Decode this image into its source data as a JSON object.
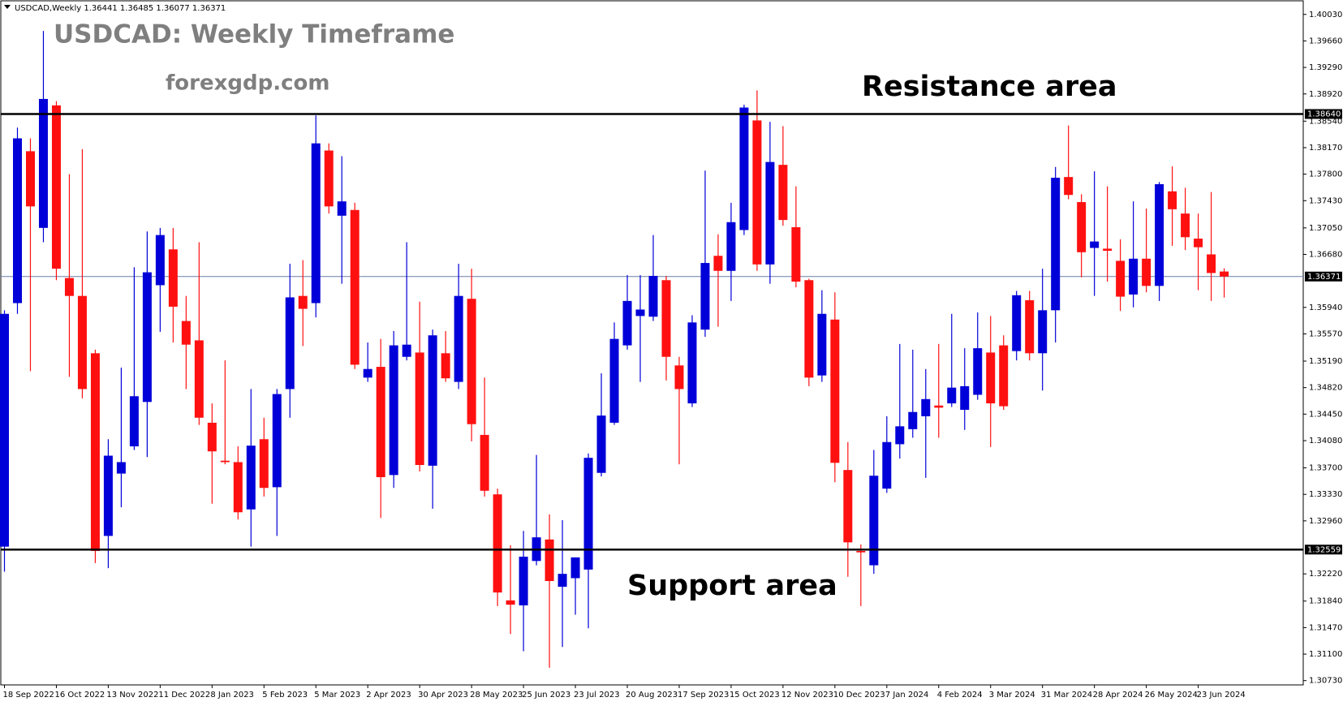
{
  "chart_data": {
    "type": "candlestick",
    "header": "USDCAD,Weekly  1.36441 1.36485 1.36077 1.36371",
    "title": "USDCAD: Weekly Timeframe",
    "subtitle": "forexgdp.com",
    "annotations": [
      {
        "text": "Resistance area"
      },
      {
        "text": "Support area"
      }
    ],
    "up_color": "#0000d8",
    "down_color": "#ff1010",
    "categories": [
      "18 Sep 2022",
      null,
      null,
      null,
      "16 Oct 2022",
      null,
      null,
      null,
      "13 Nov 2022",
      null,
      null,
      null,
      "11 Dec 2022",
      null,
      null,
      null,
      "8 Jan 2023",
      null,
      null,
      null,
      "5 Feb 2023",
      null,
      null,
      null,
      "5 Mar 2023",
      null,
      null,
      null,
      "2 Apr 2023",
      null,
      null,
      null,
      "30 Apr 2023",
      null,
      null,
      null,
      "28 May 2023",
      null,
      null,
      null,
      "25 Jun 2023",
      null,
      null,
      null,
      "23 Jul 2023",
      null,
      null,
      null,
      "20 Aug 2023",
      null,
      null,
      null,
      "17 Sep 2023",
      null,
      null,
      null,
      "15 Oct 2023",
      null,
      null,
      null,
      "12 Nov 2023",
      null,
      null,
      null,
      "10 Dec 2023",
      null,
      null,
      null,
      "7 Jan 2024",
      null,
      null,
      null,
      "4 Feb 2024",
      null,
      null,
      null,
      "3 Mar 2024",
      null,
      null,
      null,
      "31 Mar 2024",
      null,
      null,
      null,
      "28 Apr 2024",
      null,
      null,
      null,
      "26 May 2024",
      null,
      null,
      null,
      "23 Jun 2024",
      null,
      null
    ],
    "open": [
      1.326,
      1.36,
      1.3812,
      1.3705,
      1.3876,
      1.3635,
      1.361,
      1.353,
      1.3275,
      1.3362,
      1.34,
      1.3462,
      1.3625,
      1.3675,
      1.3575,
      1.3548,
      1.3433,
      1.338,
      1.3378,
      1.3312,
      1.341,
      1.3343,
      1.348,
      1.361,
      1.36,
      1.3813,
      1.3722,
      1.373,
      1.3496,
      1.3511,
      1.336,
      1.3525,
      1.3531,
      1.3373,
      1.353,
      1.349,
      1.3606,
      1.3416,
      1.3333,
      1.3185,
      1.3178,
      1.324,
      1.327,
      1.3204,
      1.3216,
      1.3228,
      1.3363,
      1.3433,
      1.3541,
      1.3582,
      1.3581,
      1.3632,
      1.3513,
      1.346,
      1.3563,
      1.3666,
      1.3645,
      1.3702,
      1.3855,
      1.3654,
      1.3793,
      1.3706,
      1.3632,
      1.3499,
      1.3577,
      1.3367,
      1.3254,
      1.3234,
      1.3341,
      1.3403,
      1.3424,
      1.3442,
      1.3457,
      1.346,
      1.3451,
      1.3472,
      1.3531,
      1.3541,
      1.3533,
      1.3604,
      1.353,
      1.359,
      1.3776,
      1.3741,
      1.3677,
      1.3676,
      1.3659,
      1.3612,
      1.3662,
      1.3624,
      1.3756,
      1.3725,
      1.369,
      1.3668,
      1.36441
    ],
    "high": [
      1.359,
      1.3845,
      1.383,
      1.398,
      1.3882,
      1.378,
      1.3815,
      1.3535,
      1.341,
      1.351,
      1.365,
      1.37,
      1.3705,
      1.3705,
      1.361,
      1.3685,
      1.346,
      1.352,
      1.34,
      1.348,
      1.344,
      1.348,
      1.3655,
      1.366,
      1.3862,
      1.3823,
      1.3805,
      1.374,
      1.3545,
      1.355,
      1.3561,
      1.3685,
      1.3602,
      1.3563,
      1.3561,
      1.3655,
      1.3648,
      1.3496,
      1.3341,
      1.3262,
      1.3282,
      1.3388,
      1.3305,
      1.3297,
      1.3245,
      1.339,
      1.3502,
      1.3573,
      1.3639,
      1.3639,
      1.3695,
      1.3638,
      1.3525,
      1.3583,
      1.3785,
      1.3696,
      1.374,
      1.3877,
      1.3897,
      1.3853,
      1.3847,
      1.3763,
      1.3634,
      1.3618,
      1.3615,
      1.3406,
      1.3263,
      1.3395,
      1.3442,
      1.3543,
      1.3535,
      1.3508,
      1.3543,
      1.3585,
      1.3537,
      1.3587,
      1.3582,
      1.3555,
      1.3617,
      1.3617,
      1.3648,
      1.379,
      1.3848,
      1.3752,
      1.3784,
      1.3763,
      1.3689,
      1.3742,
      1.3732,
      1.3769,
      1.3791,
      1.3761,
      1.3725,
      1.3755,
      1.36485
    ],
    "low": [
      1.3225,
      1.3585,
      1.3505,
      1.3685,
      1.3632,
      1.3497,
      1.3467,
      1.3237,
      1.323,
      1.3315,
      1.3395,
      1.3385,
      1.356,
      1.3545,
      1.348,
      1.343,
      1.332,
      1.3375,
      1.3298,
      1.326,
      1.333,
      1.3275,
      1.344,
      1.354,
      1.358,
      1.3725,
      1.3627,
      1.3508,
      1.349,
      1.33,
      1.3342,
      1.352,
      1.3365,
      1.3313,
      1.349,
      1.348,
      1.3407,
      1.333,
      1.3177,
      1.3138,
      1.3114,
      1.3234,
      1.3091,
      1.312,
      1.3165,
      1.3146,
      1.3358,
      1.343,
      1.3535,
      1.349,
      1.3575,
      1.3492,
      1.3375,
      1.3455,
      1.3553,
      1.3567,
      1.3603,
      1.3695,
      1.3645,
      1.3627,
      1.3708,
      1.3622,
      1.3484,
      1.349,
      1.335,
      1.3218,
      1.3177,
      1.3222,
      1.3335,
      1.3383,
      1.3412,
      1.3356,
      1.3412,
      1.3455,
      1.3423,
      1.3465,
      1.3399,
      1.3451,
      1.352,
      1.352,
      1.3478,
      1.3545,
      1.3745,
      1.3636,
      1.361,
      1.363,
      1.3589,
      1.3594,
      1.3615,
      1.3603,
      1.368,
      1.3674,
      1.3618,
      1.3603,
      1.36077
    ],
    "close": [
      1.3585,
      1.383,
      1.3735,
      1.3885,
      1.3648,
      1.361,
      1.348,
      1.3254,
      1.3387,
      1.3378,
      1.347,
      1.3643,
      1.3695,
      1.3595,
      1.3542,
      1.344,
      1.3393,
      1.3378,
      1.3308,
      1.3401,
      1.3342,
      1.3473,
      1.3608,
      1.3592,
      1.3823,
      1.3735,
      1.3742,
      1.3514,
      1.3508,
      1.3357,
      1.3541,
      1.3542,
      1.3374,
      1.3555,
      1.3495,
      1.361,
      1.3431,
      1.3338,
      1.3196,
      1.3179,
      1.3246,
      1.3273,
      1.3212,
      1.3222,
      1.3245,
      1.3384,
      1.3443,
      1.355,
      1.3603,
      1.3591,
      1.3638,
      1.3525,
      1.348,
      1.3573,
      1.3656,
      1.3645,
      1.3713,
      1.3873,
      1.3654,
      1.3797,
      1.3716,
      1.363,
      1.3496,
      1.3585,
      1.3377,
      1.3266,
      1.3252,
      1.3359,
      1.3406,
      1.3428,
      1.3448,
      1.3466,
      1.3454,
      1.3482,
      1.3484,
      1.3537,
      1.346,
      1.3456,
      1.3611,
      1.353,
      1.359,
      1.3775,
      1.3751,
      1.3671,
      1.3686,
      1.3673,
      1.3609,
      1.3662,
      1.3624,
      1.3766,
      1.3731,
      1.3692,
      1.3678,
      1.3642,
      1.36371
    ],
    "ylim": [
      1.3067,
      1.4022
    ],
    "yticks": [
      {
        "value": 1.4003,
        "label": "1.40030"
      },
      {
        "value": 1.3966,
        "label": "1.39660"
      },
      {
        "value": 1.3929,
        "label": "1.39290"
      },
      {
        "value": 1.3892,
        "label": "1.38920"
      },
      {
        "value": 1.3854,
        "label": "1.38540"
      },
      {
        "value": 1.3817,
        "label": "1.38170"
      },
      {
        "value": 1.378,
        "label": "1.37800"
      },
      {
        "value": 1.3743,
        "label": "1.37430"
      },
      {
        "value": 1.3705,
        "label": "1.37050"
      },
      {
        "value": 1.3668,
        "label": "1.36680"
      },
      {
        "value": 1.3594,
        "label": "1.35940"
      },
      {
        "value": 1.3557,
        "label": "1.35570"
      },
      {
        "value": 1.3519,
        "label": "1.35190"
      },
      {
        "value": 1.3482,
        "label": "1.34820"
      },
      {
        "value": 1.3445,
        "label": "1.34450"
      },
      {
        "value": 1.3408,
        "label": "1.34080"
      },
      {
        "value": 1.337,
        "label": "1.33700"
      },
      {
        "value": 1.3333,
        "label": "1.33330"
      },
      {
        "value": 1.3296,
        "label": "1.32960"
      },
      {
        "value": 1.3222,
        "label": "1.32220"
      },
      {
        "value": 1.3184,
        "label": "1.31840"
      },
      {
        "value": 1.3147,
        "label": "1.31470"
      },
      {
        "value": 1.311,
        "label": "1.31100"
      },
      {
        "value": 1.3073,
        "label": "1.30730"
      }
    ],
    "levels": [
      {
        "value": 1.3864,
        "label": "1.38640"
      },
      {
        "value": 1.32559,
        "label": "1.32559"
      }
    ],
    "last_price": {
      "value": 1.36371,
      "label": "1.36371"
    }
  }
}
